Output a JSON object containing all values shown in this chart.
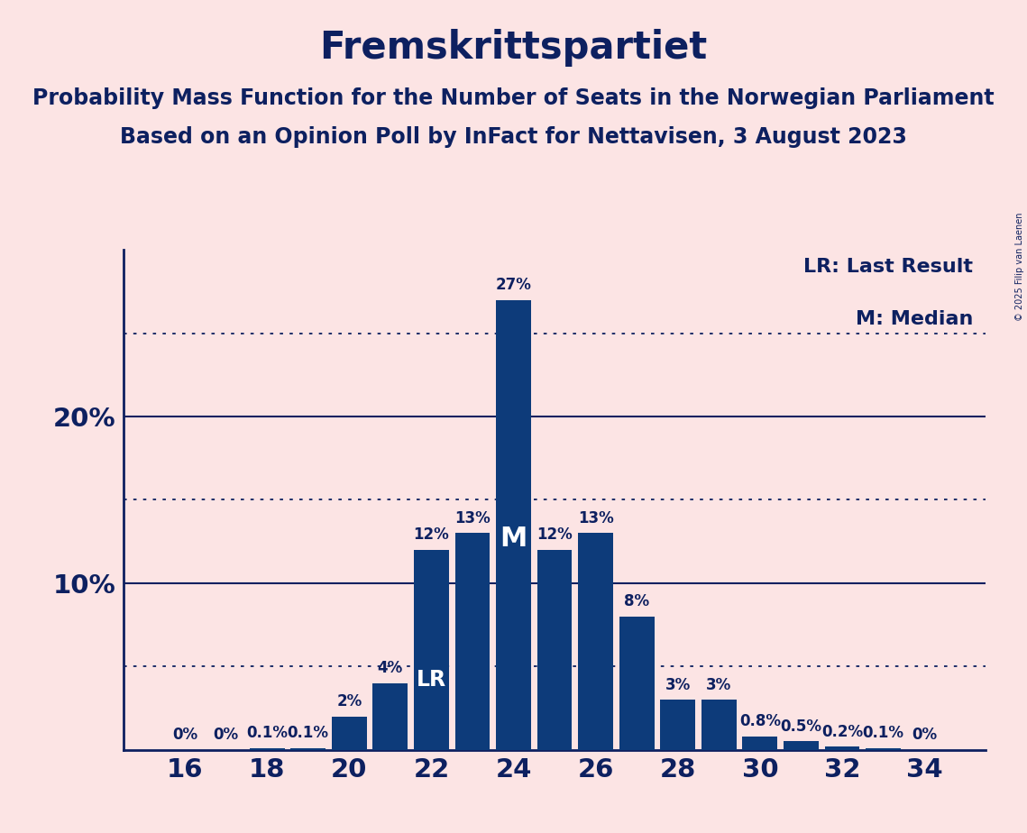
{
  "title": "Fremskrittspartiet",
  "subtitle1": "Probability Mass Function for the Number of Seats in the Norwegian Parliament",
  "subtitle2": "Based on an Opinion Poll by InFact for Nettavisen, 3 August 2023",
  "copyright": "© 2025 Filip van Laenen",
  "seats": [
    16,
    17,
    18,
    19,
    20,
    21,
    22,
    23,
    24,
    25,
    26,
    27,
    28,
    29,
    30,
    31,
    32,
    33,
    34
  ],
  "probabilities": [
    0.0,
    0.0,
    0.001,
    0.001,
    0.02,
    0.04,
    0.12,
    0.13,
    0.27,
    0.12,
    0.13,
    0.08,
    0.03,
    0.03,
    0.008,
    0.005,
    0.002,
    0.001,
    0.0
  ],
  "labels": [
    "0%",
    "0%",
    "0.1%",
    "0.1%",
    "2%",
    "4%",
    "12%",
    "13%",
    "27%",
    "12%",
    "13%",
    "8%",
    "3%",
    "3%",
    "0.8%",
    "0.5%",
    "0.2%",
    "0.1%",
    "0%"
  ],
  "bar_color": "#0d3b7a",
  "background_color": "#fce4e4",
  "text_color": "#0d2060",
  "lr_seat": 22,
  "median_seat": 24,
  "legend_lr": "LR: Last Result",
  "legend_m": "M: Median",
  "ylabel_ticks": [
    0.0,
    0.1,
    0.2
  ],
  "ylabel_labels": [
    "",
    "10%",
    "20%"
  ],
  "dotted_lines": [
    0.05,
    0.15,
    0.25
  ],
  "solid_lines": [
    0.1,
    0.2
  ],
  "xlim": [
    14.5,
    35.5
  ],
  "ylim": [
    0,
    0.3
  ],
  "title_fontsize": 30,
  "subtitle_fontsize": 17,
  "bar_width": 0.85,
  "label_fontsize": 12,
  "tick_fontsize": 21,
  "legend_fontsize": 16
}
